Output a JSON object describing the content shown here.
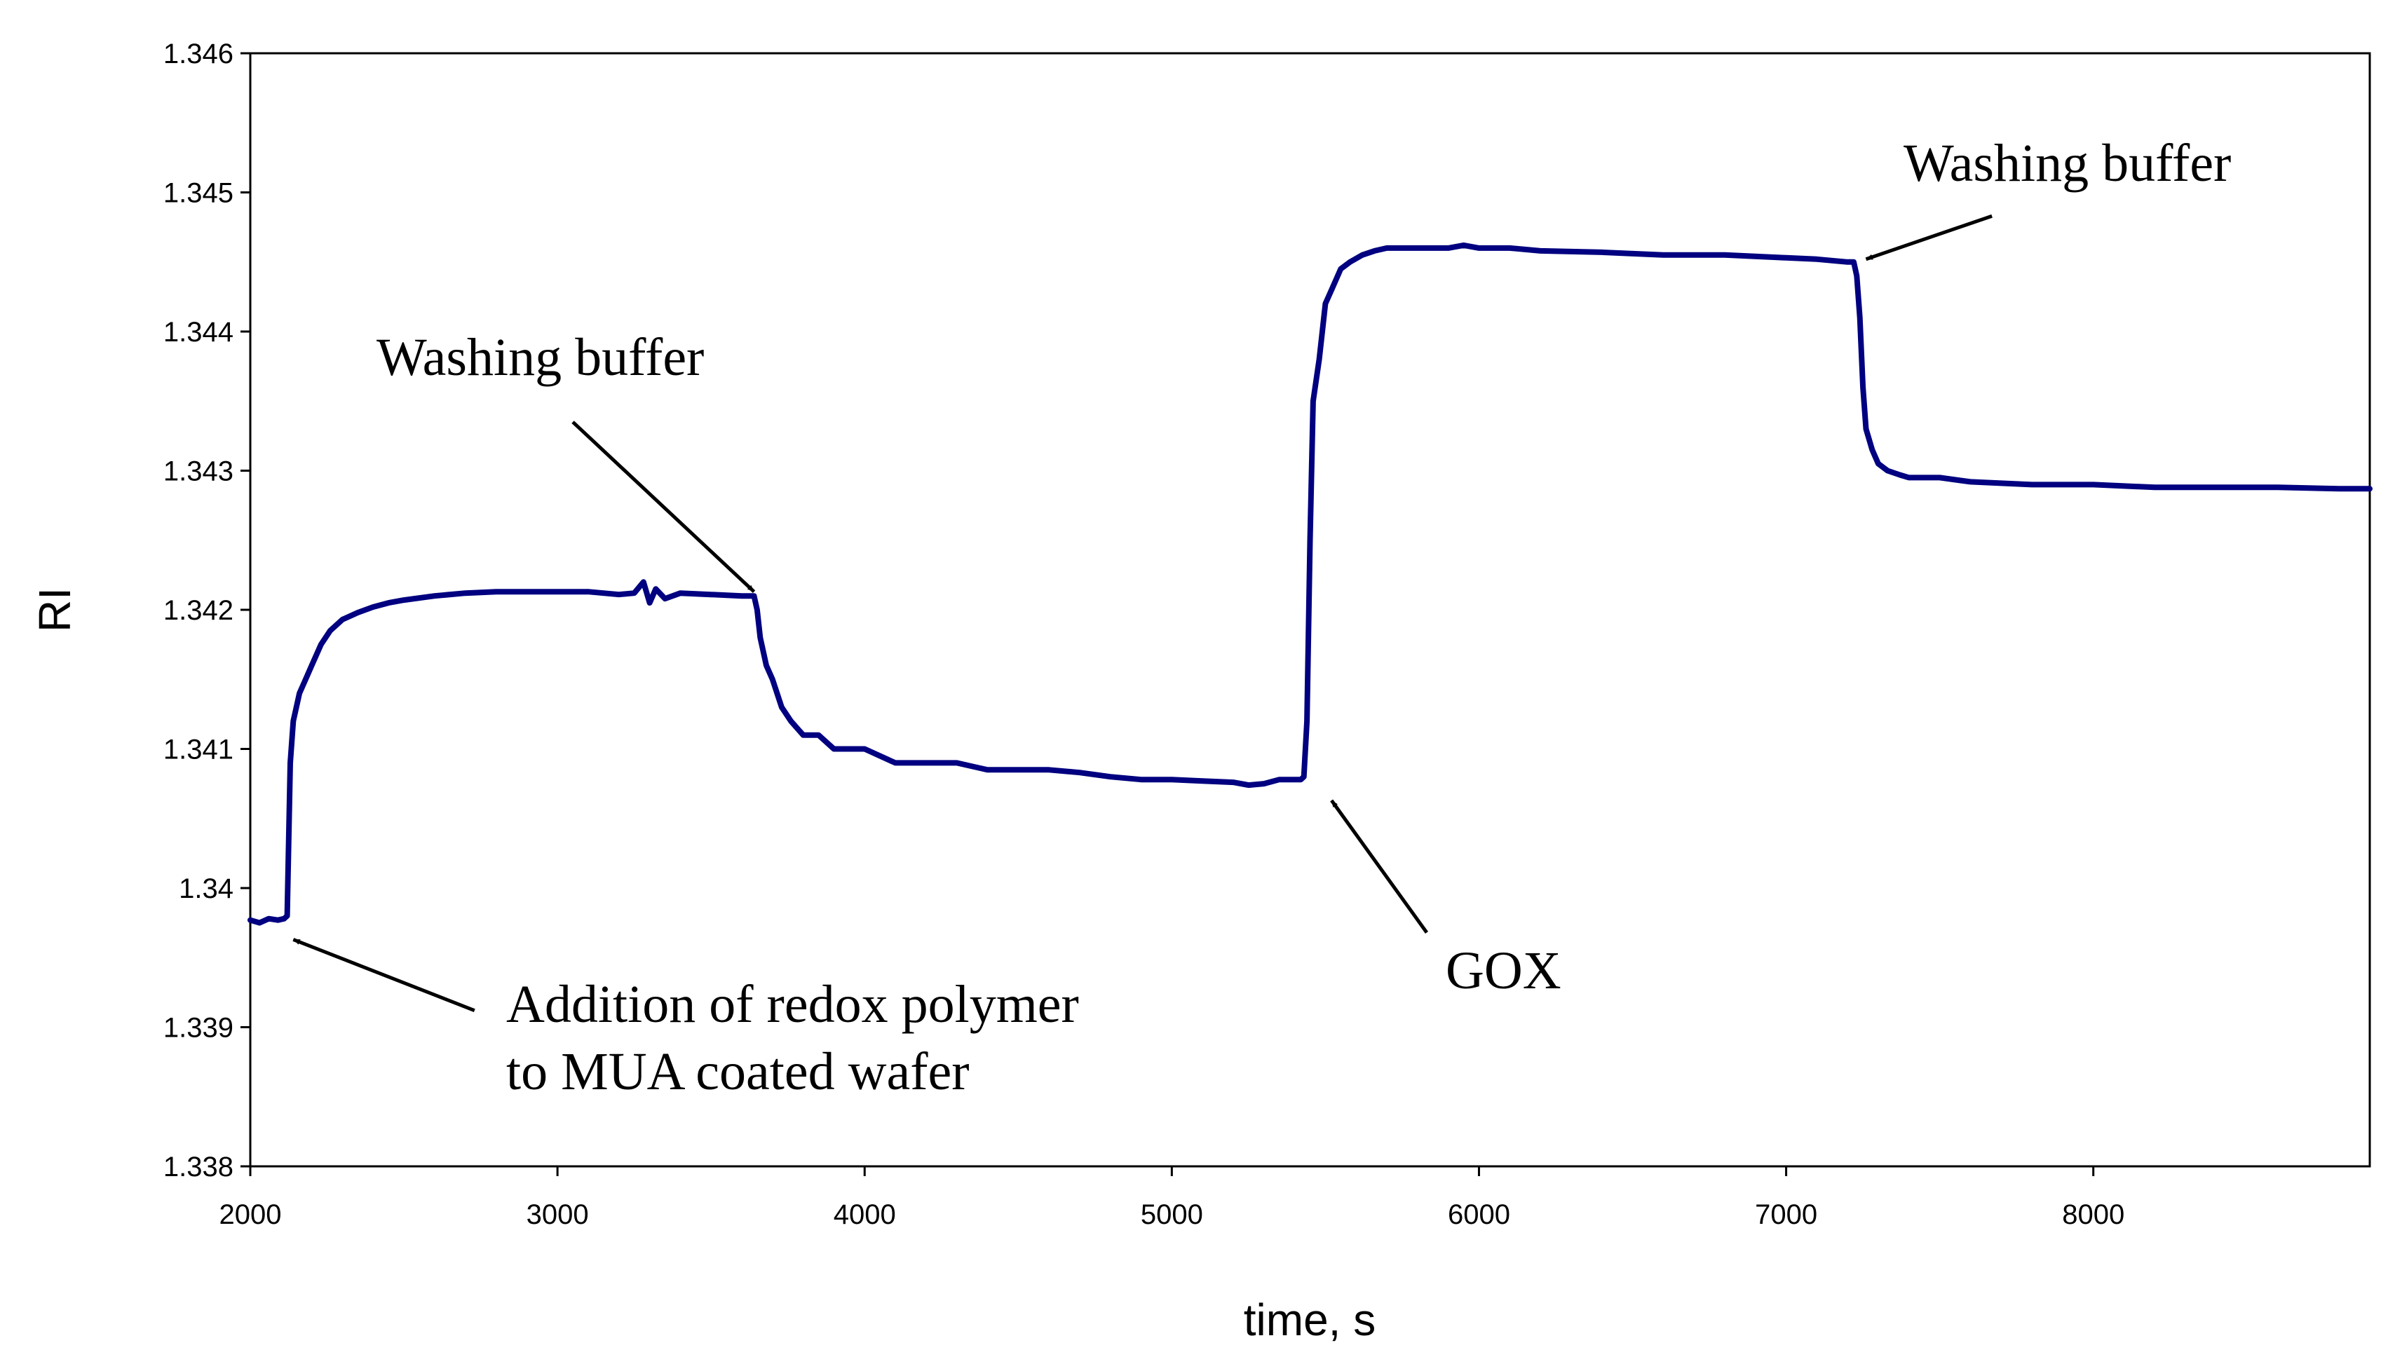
{
  "chart_data": {
    "type": "line",
    "title": "",
    "xlabel": "time, s",
    "ylabel": "RI",
    "xlim": [
      2000,
      8900
    ],
    "ylim": [
      1.338,
      1.346
    ],
    "xticks": [
      2000,
      3000,
      4000,
      5000,
      6000,
      7000,
      8000
    ],
    "xtick_labels": [
      "2000",
      "3000",
      "4000",
      "5000",
      "6000",
      "7000",
      "8000"
    ],
    "yticks": [
      1.338,
      1.339,
      1.34,
      1.341,
      1.342,
      1.343,
      1.344,
      1.345,
      1.346
    ],
    "ytick_labels": [
      "1.338",
      "1.339",
      "1.34",
      "1.341",
      "1.342",
      "1.343",
      "1.344",
      "1.345",
      "1.346"
    ],
    "grid": false,
    "series_color": "#000080",
    "series": [
      {
        "name": "RI",
        "x": [
          2000,
          2030,
          2060,
          2090,
          2110,
          2120,
          2130,
          2140,
          2160,
          2180,
          2200,
          2230,
          2260,
          2300,
          2350,
          2400,
          2450,
          2500,
          2600,
          2700,
          2800,
          2900,
          3000,
          3100,
          3200,
          3250,
          3280,
          3300,
          3320,
          3350,
          3400,
          3500,
          3600,
          3640,
          3650,
          3660,
          3680,
          3700,
          3730,
          3760,
          3800,
          3850,
          3900,
          4000,
          4100,
          4200,
          4300,
          4400,
          4500,
          4600,
          4700,
          4800,
          4900,
          5000,
          5100,
          5200,
          5250,
          5300,
          5350,
          5400,
          5420,
          5430,
          5440,
          5450,
          5460,
          5480,
          5500,
          5520,
          5550,
          5580,
          5620,
          5660,
          5700,
          5800,
          5900,
          5950,
          6000,
          6100,
          6200,
          6400,
          6600,
          6800,
          7000,
          7100,
          7200,
          7220,
          7230,
          7240,
          7250,
          7260,
          7280,
          7300,
          7330,
          7370,
          7400,
          7500,
          7600,
          7800,
          8000,
          8200,
          8400,
          8600,
          8800,
          8900
        ],
        "y": [
          1.33977,
          1.33975,
          1.33978,
          1.33977,
          1.33978,
          1.3398,
          1.3409,
          1.3412,
          1.3414,
          1.3415,
          1.3416,
          1.34175,
          1.34185,
          1.34193,
          1.34198,
          1.34202,
          1.34205,
          1.34207,
          1.3421,
          1.34212,
          1.34213,
          1.34213,
          1.34213,
          1.34213,
          1.34211,
          1.34212,
          1.3422,
          1.34205,
          1.34215,
          1.34208,
          1.34212,
          1.34211,
          1.3421,
          1.3421,
          1.342,
          1.3418,
          1.3416,
          1.3415,
          1.3413,
          1.3412,
          1.3411,
          1.3411,
          1.341,
          1.341,
          1.3409,
          1.3409,
          1.3409,
          1.34085,
          1.34085,
          1.34085,
          1.34083,
          1.3408,
          1.34078,
          1.34078,
          1.34077,
          1.34076,
          1.34074,
          1.34075,
          1.34078,
          1.34078,
          1.34078,
          1.3408,
          1.3412,
          1.3425,
          1.3435,
          1.3438,
          1.3442,
          1.3443,
          1.34445,
          1.3445,
          1.34455,
          1.34458,
          1.3446,
          1.3446,
          1.3446,
          1.34462,
          1.3446,
          1.3446,
          1.34458,
          1.34457,
          1.34455,
          1.34455,
          1.34453,
          1.34452,
          1.3445,
          1.3445,
          1.3444,
          1.3441,
          1.3436,
          1.3433,
          1.34315,
          1.34305,
          1.343,
          1.34297,
          1.34295,
          1.34295,
          1.34292,
          1.3429,
          1.3429,
          1.34288,
          1.34288,
          1.34288,
          1.34287,
          1.34287
        ]
      }
    ],
    "annotations": [
      {
        "lines": [
          "Washing buffer"
        ],
        "arrow_from": [
          3050,
          1.34335
        ],
        "arrow_to": [
          3640,
          1.34213
        ]
      },
      {
        "lines": [
          "Addition of redox polymer",
          "to MUA coated wafer"
        ],
        "arrow_from": [
          2730,
          1.33912
        ],
        "arrow_to": [
          2140,
          1.33963
        ]
      },
      {
        "lines": [
          "GOX"
        ],
        "arrow_from": [
          5830,
          1.33968
        ],
        "arrow_to": [
          5520,
          1.34063
        ]
      },
      {
        "lines": [
          "Washing buffer"
        ],
        "arrow_from": [
          7670,
          1.34483
        ],
        "arrow_to": [
          7260,
          1.34452
        ]
      }
    ]
  }
}
